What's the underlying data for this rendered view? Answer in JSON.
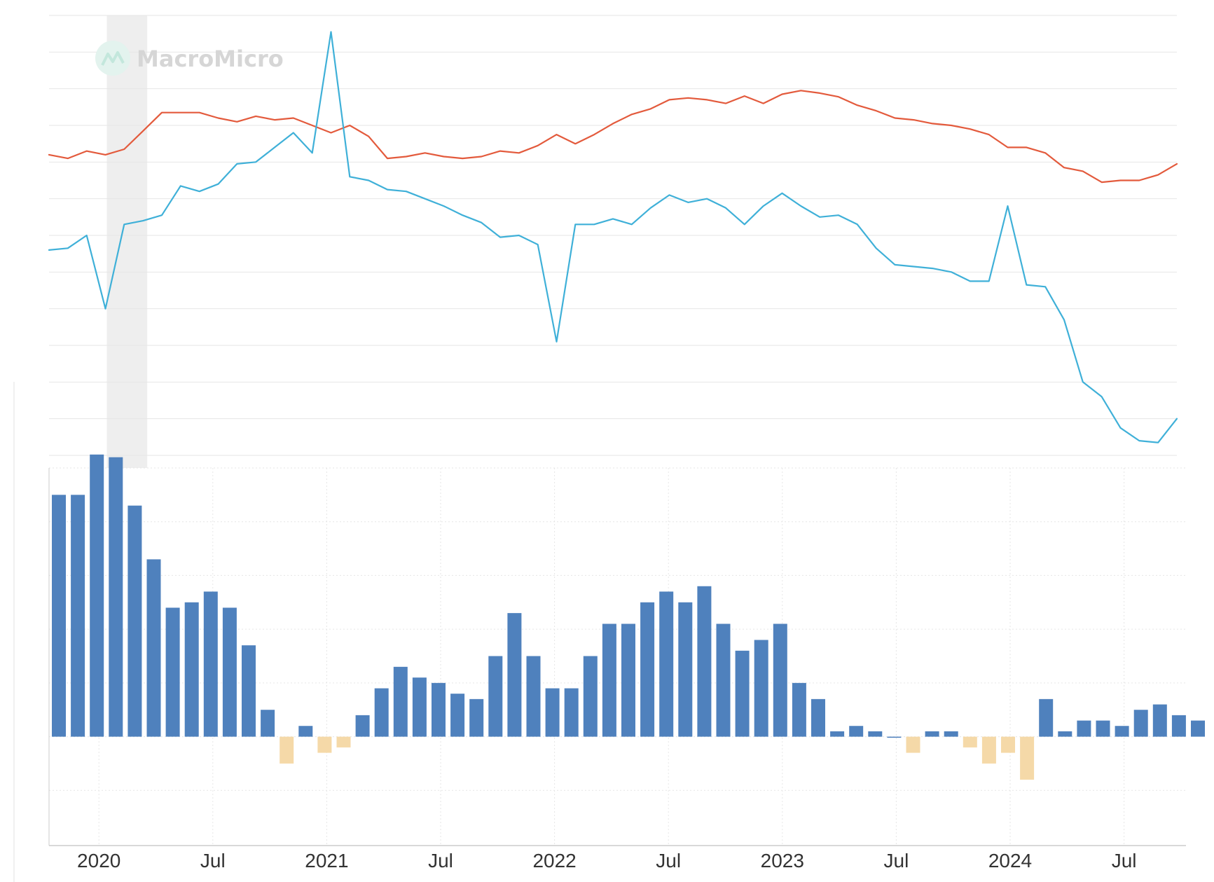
{
  "watermark": {
    "text": "MacroMicro",
    "icon": "macromicro-logo-icon"
  },
  "colors": {
    "red_line": "#e35a3c",
    "blue_line": "#3fb0d8",
    "bar_positive": "#4f81bd",
    "bar_negative": "#f5d9a8",
    "grid": "#e6e6e6",
    "recession_band": "#eeeeee",
    "axis_text": "#333333"
  },
  "chart_data": [
    {
      "type": "line",
      "title": "",
      "grid": true,
      "x_start": "2019-11",
      "x_interval": "monthly",
      "ylim": [
        0,
        12
      ],
      "recession_band": {
        "start": "2020-02",
        "end": "2020-04"
      },
      "series": [
        {
          "color": "#e35a3c",
          "values": [
            8.2,
            8.1,
            8.3,
            8.2,
            8.35,
            8.85,
            9.35,
            9.35,
            9.35,
            9.2,
            9.1,
            9.25,
            9.15,
            9.2,
            9.0,
            8.8,
            9.0,
            8.7,
            8.1,
            8.15,
            8.25,
            8.15,
            8.1,
            8.15,
            8.3,
            8.25,
            8.45,
            8.75,
            8.5,
            8.75,
            9.05,
            9.3,
            9.45,
            9.7,
            9.75,
            9.7,
            9.6,
            9.8,
            9.6,
            9.85,
            9.95,
            9.88,
            9.78,
            9.55,
            9.4,
            9.2,
            9.15,
            9.05,
            9.0,
            8.9,
            8.75,
            8.4,
            8.4,
            8.25,
            7.85,
            7.75,
            7.45,
            7.5,
            7.5,
            7.65,
            7.95
          ]
        },
        {
          "color": "#3fb0d8",
          "values": [
            5.6,
            5.65,
            6.0,
            4.0,
            6.3,
            6.4,
            6.55,
            7.35,
            7.2,
            7.4,
            7.95,
            8.0,
            8.4,
            8.8,
            8.25,
            11.55,
            7.6,
            7.5,
            7.25,
            7.2,
            7.0,
            6.8,
            6.55,
            6.35,
            5.95,
            6.0,
            5.75,
            3.1,
            6.3,
            6.3,
            6.45,
            6.3,
            6.75,
            7.1,
            6.9,
            7.0,
            6.75,
            6.3,
            6.8,
            7.15,
            6.8,
            6.5,
            6.55,
            6.3,
            5.65,
            5.2,
            5.15,
            5.1,
            5.0,
            4.75,
            4.75,
            6.8,
            4.65,
            4.6,
            3.7,
            2.0,
            1.6,
            0.75,
            0.4,
            0.35,
            1.0
          ]
        }
      ]
    },
    {
      "type": "bar",
      "grid": true,
      "x_start": "2019-11",
      "x_interval": "monthly",
      "ylim": [
        -2,
        5
      ],
      "x_ticks": [
        {
          "label": "2020",
          "date": "2020-01"
        },
        {
          "label": "Jul",
          "date": "2020-07"
        },
        {
          "label": "2021",
          "date": "2021-01"
        },
        {
          "label": "Jul",
          "date": "2021-07"
        },
        {
          "label": "2022",
          "date": "2022-01"
        },
        {
          "label": "Jul",
          "date": "2022-07"
        },
        {
          "label": "2023",
          "date": "2023-01"
        },
        {
          "label": "Jul",
          "date": "2023-07"
        },
        {
          "label": "2024",
          "date": "2024-01"
        },
        {
          "label": "Jul",
          "date": "2024-07"
        }
      ],
      "values": [
        4.5,
        4.5,
        5.25,
        5.2,
        4.3,
        3.3,
        2.4,
        2.5,
        2.7,
        2.4,
        1.7,
        0.5,
        -0.5,
        0.2,
        -0.3,
        -0.2,
        0.4,
        0.9,
        1.3,
        1.1,
        1.0,
        0.8,
        0.7,
        1.5,
        2.3,
        1.5,
        0.9,
        0.9,
        1.5,
        2.1,
        2.1,
        2.5,
        2.7,
        2.5,
        2.8,
        2.1,
        1.6,
        1.8,
        2.1,
        1.0,
        0.7,
        0.1,
        0.2,
        0.1,
        0.0,
        -0.3,
        0.1,
        0.1,
        -0.2,
        -0.5,
        -0.3,
        -0.8,
        0.7,
        0.1,
        0.3,
        0.3,
        0.2,
        0.5,
        0.6,
        0.4,
        0.3
      ]
    }
  ]
}
